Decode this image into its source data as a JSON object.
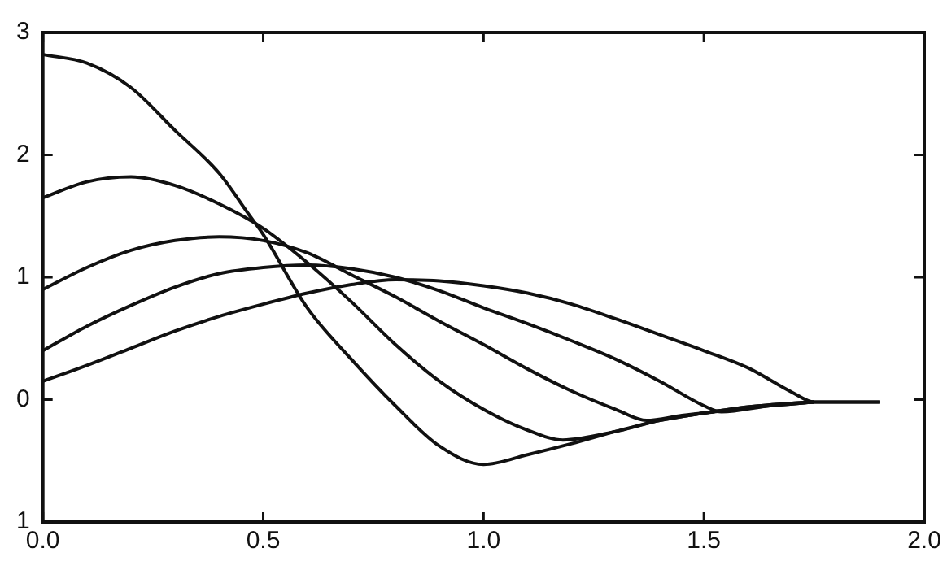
{
  "chart_data": {
    "type": "line",
    "xlim": [
      0,
      2
    ],
    "ylim": [
      -1,
      3
    ],
    "xticks": [
      {
        "value": 0,
        "label": "0.0"
      },
      {
        "value": 0.5,
        "label": "0.5"
      },
      {
        "value": 1,
        "label": "1.0"
      },
      {
        "value": 1.5,
        "label": "1.5"
      },
      {
        "value": 2,
        "label": "2.0"
      }
    ],
    "yticks": [
      {
        "value": -1,
        "label": "1"
      },
      0,
      1,
      2,
      3
    ],
    "grid": false,
    "legend": false,
    "marker": "none",
    "line_style": "solid",
    "series": [
      {
        "color": "#111111",
        "x": [
          0,
          0.1,
          0.2,
          0.3,
          0.4,
          0.47,
          0.5,
          0.6,
          0.7,
          0.8,
          0.9,
          1.0,
          1.1,
          1.2,
          1.3,
          1.4,
          1.5,
          1.6,
          1.7,
          1.75,
          1.8,
          1.9
        ],
        "values": [
          2.82,
          2.75,
          2.55,
          2.2,
          1.85,
          1.5,
          1.35,
          0.75,
          0.33,
          -0.05,
          -0.38,
          -0.53,
          -0.45,
          -0.36,
          -0.26,
          -0.17,
          -0.11,
          -0.06,
          -0.03,
          -0.02,
          -0.02,
          -0.02
        ]
      },
      {
        "color": "#111111",
        "x": [
          0,
          0.1,
          0.2,
          0.3,
          0.4,
          0.5,
          0.6,
          0.7,
          0.8,
          0.9,
          1.0,
          1.1,
          1.18,
          1.3,
          1.4,
          1.5,
          1.6,
          1.7,
          1.75
        ],
        "values": [
          1.65,
          1.78,
          1.82,
          1.75,
          1.6,
          1.4,
          1.12,
          0.8,
          0.45,
          0.15,
          -0.08,
          -0.25,
          -0.33,
          -0.26,
          -0.17,
          -0.11,
          -0.06,
          -0.03,
          -0.02
        ]
      },
      {
        "color": "#111111",
        "x": [
          0,
          0.1,
          0.2,
          0.3,
          0.4,
          0.5,
          0.6,
          0.7,
          0.8,
          0.9,
          1.0,
          1.1,
          1.2,
          1.3,
          1.37,
          1.45,
          1.55,
          1.65,
          1.75
        ],
        "values": [
          0.9,
          1.08,
          1.22,
          1.3,
          1.33,
          1.3,
          1.2,
          1.02,
          0.84,
          0.64,
          0.45,
          0.25,
          0.07,
          -0.08,
          -0.17,
          -0.13,
          -0.09,
          -0.05,
          -0.02
        ]
      },
      {
        "color": "#111111",
        "x": [
          0,
          0.1,
          0.2,
          0.3,
          0.4,
          0.5,
          0.6,
          0.7,
          0.8,
          0.9,
          1.0,
          1.1,
          1.2,
          1.3,
          1.4,
          1.5,
          1.54,
          1.65,
          1.75
        ],
        "values": [
          0.4,
          0.6,
          0.77,
          0.92,
          1.03,
          1.08,
          1.1,
          1.07,
          1.0,
          0.89,
          0.75,
          0.62,
          0.48,
          0.33,
          0.15,
          -0.05,
          -0.1,
          -0.05,
          -0.02
        ]
      },
      {
        "color": "#111111",
        "x": [
          0,
          0.1,
          0.2,
          0.3,
          0.4,
          0.5,
          0.6,
          0.7,
          0.8,
          0.9,
          1.0,
          1.1,
          1.2,
          1.3,
          1.4,
          1.5,
          1.6,
          1.7,
          1.75,
          1.8,
          1.9
        ],
        "values": [
          0.15,
          0.28,
          0.42,
          0.56,
          0.68,
          0.78,
          0.87,
          0.94,
          0.98,
          0.97,
          0.93,
          0.87,
          0.78,
          0.66,
          0.53,
          0.4,
          0.26,
          0.06,
          -0.02,
          -0.02,
          -0.02
        ]
      }
    ]
  }
}
